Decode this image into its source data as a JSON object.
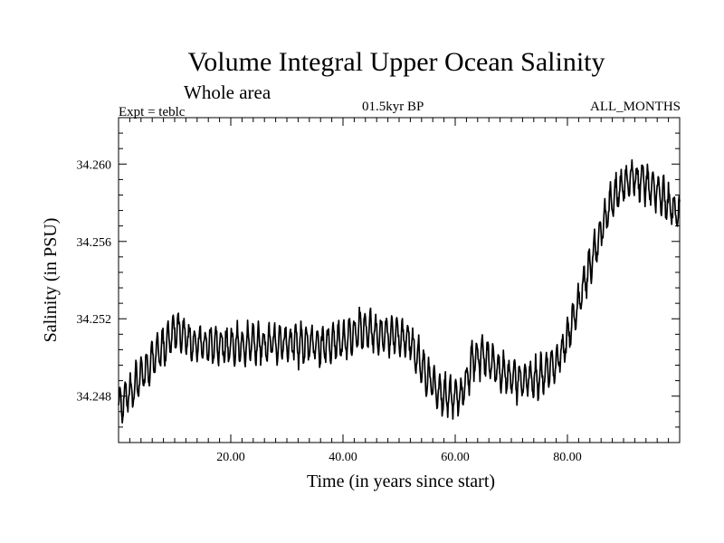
{
  "chart_data": {
    "type": "line",
    "title": "Volume Integral Upper Ocean Salinity",
    "subtitle": "Whole area",
    "experiment_label": "Expt = teblc",
    "period_label": "01.5kyr BP",
    "months_label": "ALL_MONTHS",
    "xlabel": "Time (in years since start)",
    "ylabel": "Salinity (in PSU)",
    "xlim": [
      0,
      100
    ],
    "ylim": [
      34.2456,
      34.2624
    ],
    "x_ticks": [
      20,
      40,
      60,
      80
    ],
    "x_tick_labels": [
      "20.00",
      "40.00",
      "60.00",
      "80.00"
    ],
    "y_ticks": [
      34.248,
      34.252,
      34.256,
      34.26
    ],
    "y_tick_labels": [
      "34.248",
      "34.252",
      "34.256",
      "34.260"
    ],
    "grid": false,
    "legend": "none",
    "series": [
      {
        "name": "Salinity",
        "color": "#000000",
        "trend": [
          [
            0,
            34.2475
          ],
          [
            3,
            34.2485
          ],
          [
            5,
            34.2495
          ],
          [
            8,
            34.2505
          ],
          [
            10,
            34.2515
          ],
          [
            13,
            34.2508
          ],
          [
            16,
            34.2507
          ],
          [
            20,
            34.2506
          ],
          [
            25,
            34.2507
          ],
          [
            30,
            34.2508
          ],
          [
            33,
            34.2507
          ],
          [
            36,
            34.2506
          ],
          [
            40,
            34.2509
          ],
          [
            43,
            34.2515
          ],
          [
            46,
            34.2512
          ],
          [
            50,
            34.2512
          ],
          [
            52,
            34.2508
          ],
          [
            55,
            34.249
          ],
          [
            58,
            34.248
          ],
          [
            61,
            34.248
          ],
          [
            63,
            34.2497
          ],
          [
            65,
            34.2502
          ],
          [
            68,
            34.2493
          ],
          [
            71,
            34.2488
          ],
          [
            75,
            34.249
          ],
          [
            78,
            34.2497
          ],
          [
            80,
            34.251
          ],
          [
            82,
            34.2528
          ],
          [
            84,
            34.2547
          ],
          [
            86,
            34.2565
          ],
          [
            88,
            34.2582
          ],
          [
            90,
            34.259
          ],
          [
            92,
            34.2593
          ],
          [
            94,
            34.259
          ],
          [
            96,
            34.2585
          ],
          [
            98,
            34.258
          ],
          [
            100,
            34.2573
          ]
        ],
        "oscillation_amplitude": 0.0011,
        "oscillation_period_years": 0.95
      }
    ]
  }
}
